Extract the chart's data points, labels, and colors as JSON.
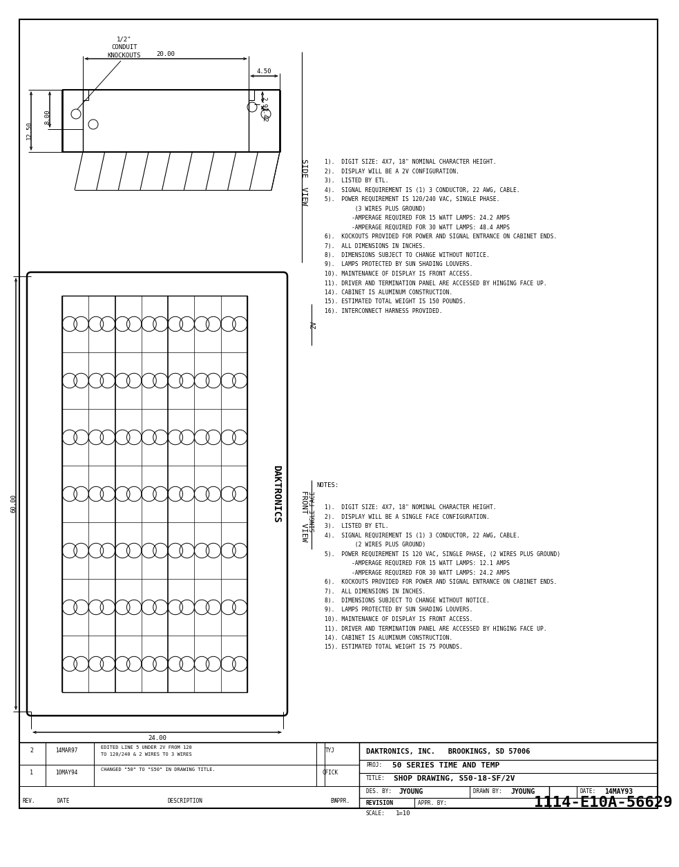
{
  "bg_color": "#ffffff",
  "line_color": "#000000",
  "company": "DAKTRONICS, INC.   BROOKINGS, SD 57006",
  "proj": "50 SERIES TIME AND TEMP",
  "title": "SHOP DRAWING, S50-18-SF/2V",
  "drawing_num": "1114-E10A-56629",
  "scale": "1=10",
  "date": "14MAY93",
  "des_by": "JYOUNG",
  "drawn_by": "JYOUNG",
  "notes_2v": [
    "1).  DIGIT SIZE: 4X7, 18\" NOMINAL CHARACTER HEIGHT.",
    "2).  DISPLAY WILL BE A 2V CONFIGURATION.",
    "3).  LISTED BY ETL.",
    "4).  SIGNAL REQUIREMENT IS (1) 3 CONDUCTOR, 22 AWG, CABLE.",
    "5).  POWER REQUIREMENT IS 120/240 VAC, SINGLE PHASE.",
    "         (3 WIRES PLUS GROUND)",
    "        -AMPERAGE REQUIRED FOR 15 WATT LAMPS: 24.2 AMPS",
    "        -AMPERAGE REQUIRED FOR 30 WATT LAMPS: 48.4 AMPS",
    "6).  KOCKOUTS PROVIDED FOR POWER AND SIGNAL ENTRANCE ON CABINET ENDS.",
    "7).  ALL DIMENSIONS IN INCHES.",
    "8).  DIMENSIONS SUBJECT TO CHANGE WITHOUT NOTICE.",
    "9).  LAMPS PROTECTED BY SUN SHADING LOUVERS.",
    "10). MAINTENANCE OF DISPLAY IS FRONT ACCESS.",
    "11). DRIVER AND TERMINATION PANEL ARE ACCESSED BY HINGING FACE UP.",
    "14). CABINET IS ALUMINUM CONSTRUCTION.",
    "15). ESTIMATED TOTAL WEIGHT IS 150 POUNDS.",
    "16). INTERCONNECT HARNESS PROVIDED."
  ],
  "notes_sf": [
    "1).  DIGIT SIZE: 4X7, 18\" NOMINAL CHARACTER HEIGHT.",
    "2).  DISPLAY WILL BE A SINGLE FACE CONFIGURATION.",
    "3).  LISTED BY ETL.",
    "4).  SIGNAL REQUIREMENT IS (1) 3 CONDUCTOR, 22 AWG, CABLE.",
    "         (2 WIRES PLUS GROUND)",
    "5).  POWER REQUIREMENT IS 120 VAC, SINGLE PHASE, (2 WIRES PLUS GROUND)",
    "        -AMPERAGE REQUIRED FOR 15 WATT LAMPS: 12.1 AMPS",
    "        -AMPERAGE REQUIRED FOR 30 WATT LAMPS: 24.2 AMPS",
    "6).  KOCKOUTS PROVIDED FOR POWER AND SIGNAL ENTRANCE ON CABINET ENDS.",
    "7).  ALL DIMENSIONS IN INCHES.",
    "8).  DIMENSIONS SUBJECT TO CHANGE WITHOUT NOTICE.",
    "9).  LAMPS PROTECTED BY SUN SHADING LOUVERS.",
    "10). MAINTENANCE OF DISPLAY IS FRONT ACCESS.",
    "11). DRIVER AND TERMINATION PANEL ARE ACCESSED BY HINGING FACE UP.",
    "14). CABINET IS ALUMINUM CONSTRUCTION.",
    "15). ESTIMATED TOTAL WEIGHT IS 75 POUNDS."
  ]
}
